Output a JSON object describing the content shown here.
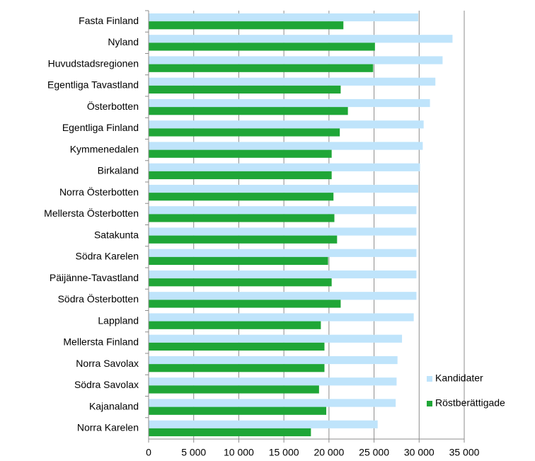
{
  "chart_data": {
    "type": "barh",
    "categories": [
      "Fasta Finland",
      "Nyland",
      "Huvudstadsregionen",
      "Egentliga Tavastland",
      "Österbotten",
      "Egentliga Finland",
      "Kymmenedalen",
      "Birkaland",
      "Norra Österbotten",
      "Mellersta Österbotten",
      "Satakunta",
      "Södra Karelen",
      "Päijänne-Tavastland",
      "Södra Österbotten",
      "Lappland",
      "Mellersta Finland",
      "Norra Savolax",
      "Södra Savolax",
      "Kajanaland",
      "Norra Karelen"
    ],
    "series": [
      {
        "name": "Kandidater",
        "color": "#bfe4fb",
        "values": [
          29900,
          33700,
          32600,
          31800,
          31200,
          30500,
          30400,
          30100,
          29900,
          29700,
          29700,
          29700,
          29700,
          29700,
          29400,
          28100,
          27600,
          27500,
          27400,
          25400
        ]
      },
      {
        "name": "Röstberättigade",
        "color": "#1fa637",
        "values": [
          21600,
          25100,
          24900,
          21300,
          22100,
          21200,
          20300,
          20300,
          20500,
          20600,
          20900,
          19900,
          20300,
          21300,
          19100,
          19500,
          19500,
          18900,
          19700,
          18000
        ]
      }
    ],
    "xlim": [
      0,
      35000
    ],
    "xticks": [
      0,
      {
        "value": 5000,
        "label": "5 000"
      },
      {
        "value": 10000,
        "label": "10 000"
      },
      {
        "value": 15000,
        "label": "15 000"
      },
      {
        "value": 20000,
        "label": "20 000"
      },
      {
        "value": 25000,
        "label": "25 000"
      },
      {
        "value": 30000,
        "label": "30 000"
      },
      {
        "value": 35000,
        "label": "35 000"
      }
    ],
    "grid": true,
    "legend": "right"
  }
}
